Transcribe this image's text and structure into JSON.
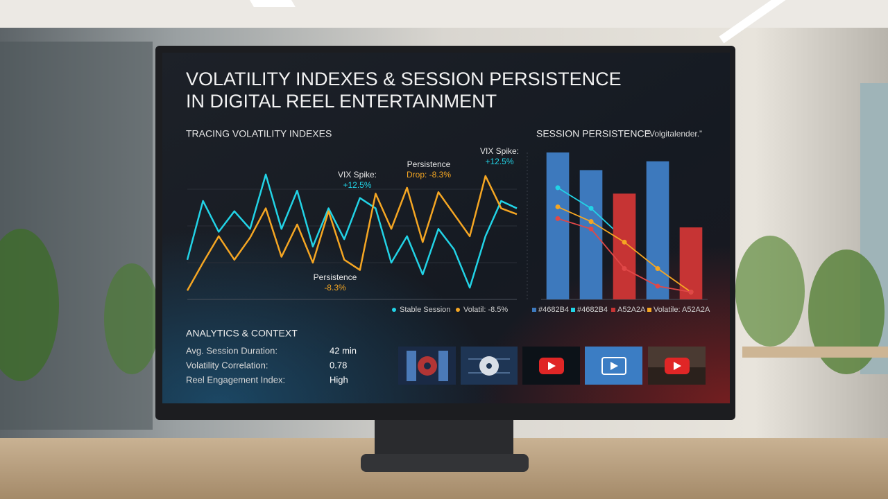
{
  "header": {
    "title_lines": [
      "VOLATILITY INDEXES & SESSION PERSISTENCE",
      "IN DIGITAL REEL ENTERTAINMENT"
    ]
  },
  "charts": [
    {
      "type": "line",
      "title": "TRACING VOLATILITY INDEXES",
      "categories": [
        null,
        null,
        null,
        null,
        null,
        null,
        null,
        null,
        null,
        null,
        null,
        null,
        null,
        null,
        null,
        null,
        null,
        null,
        null,
        null,
        null,
        null
      ],
      "ylim": [
        0,
        100
      ],
      "series": [
        {
          "name": "Stable Session",
          "color": "#22d3e6",
          "values": [
            27,
            67,
            46,
            60,
            48,
            85,
            48,
            74,
            36,
            62,
            41,
            69,
            62,
            25,
            43,
            17,
            48,
            34,
            8,
            43,
            67,
            62
          ]
        },
        {
          "name": "Volatil: -8.5%",
          "color": "#f5a623",
          "values": [
            6,
            25,
            43,
            27,
            42,
            62,
            29,
            51,
            25,
            60,
            27,
            20,
            72,
            48,
            76,
            39,
            73,
            58,
            43,
            84,
            62,
            58
          ]
        }
      ],
      "annotations": [
        {
          "lines": [
            "VIX Spike:",
            "+12.5%"
          ]
        },
        {
          "lines": [
            "Persistence",
            "Drop: -8.3%"
          ]
        },
        {
          "lines": [
            "VIX Spike:",
            "+12.5%"
          ]
        },
        {
          "lines": [
            "Persistence",
            "-8.3%"
          ]
        }
      ]
    },
    {
      "type": "combo",
      "title": "SESSION PERSISTENCE",
      "subtitle": "“Volgitalender.”",
      "categories": [
        null,
        null,
        null,
        null,
        null
      ],
      "ylim": [
        0,
        100
      ],
      "series": [
        {
          "name": "#4682B4",
          "kind": "bar",
          "color": "#3d79bd",
          "values": [
            100,
            88,
            null,
            94,
            null
          ]
        },
        {
          "name": "#4682B4",
          "kind": "line",
          "color": "#22d3e6",
          "values": [
            76,
            62,
            41,
            null,
            null
          ]
        },
        {
          "name": "A52A2A",
          "kind": "bar",
          "color": "#c63434",
          "values": [
            null,
            null,
            72,
            null,
            49
          ]
        },
        {
          "name": "Volatile: A52A2A",
          "kind": "line",
          "color": "#f5a623",
          "values": [
            63,
            53,
            39,
            21,
            5
          ]
        },
        {
          "kind": "line",
          "color": "#e04848",
          "values": [
            55,
            48,
            21,
            9,
            5
          ]
        }
      ]
    }
  ],
  "analytics": {
    "title": "ANALYTICS & CONTEXT",
    "rows": [
      [
        "Avg. Session Duration:",
        "42 min"
      ],
      [
        "Volatility Correlation:",
        "0.78"
      ],
      [
        "Reel Engagement Index:",
        "High"
      ]
    ]
  }
}
